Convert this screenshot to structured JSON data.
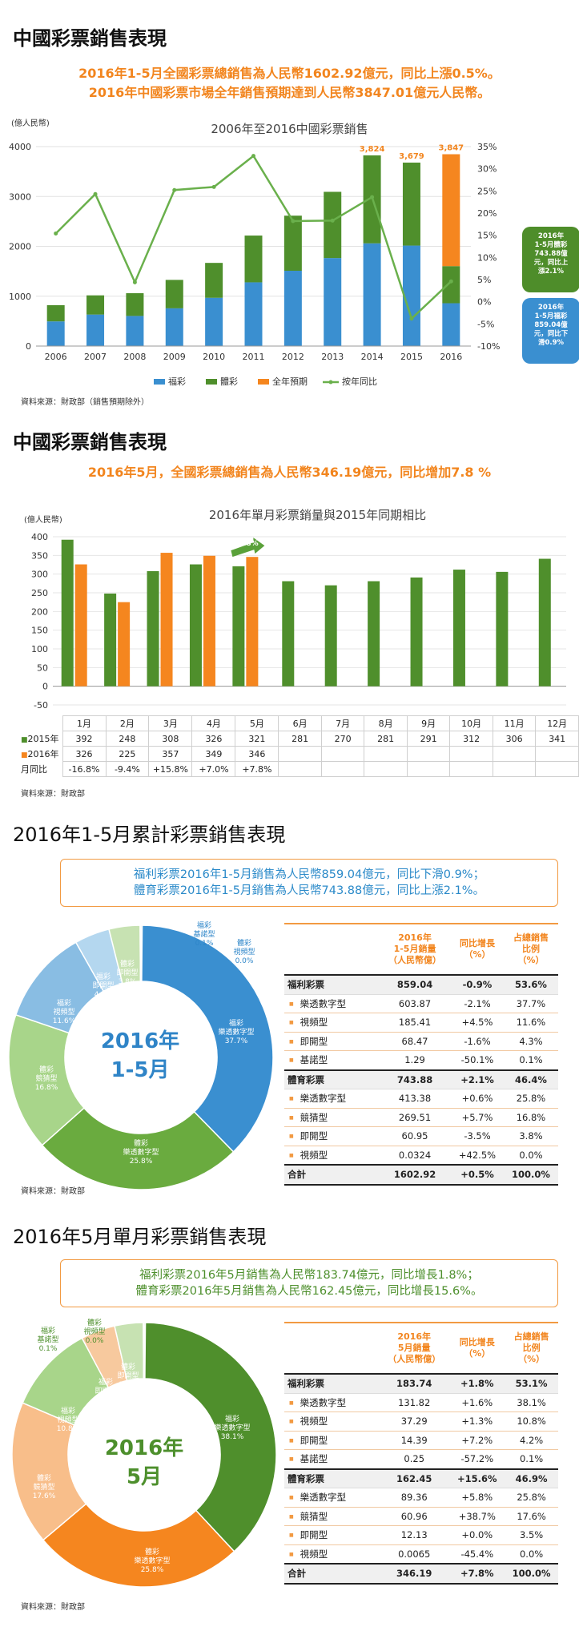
{
  "colors": {
    "fucai": "#3a8fd0",
    "ticai": "#4f8f2c",
    "yuqi": "#f5861f",
    "tongbi": "#6ab04c",
    "accent": "#f2851e"
  },
  "section1": {
    "title": "中國彩票銷售表現",
    "headline1": "2016年1-5月全國彩票總銷售為人民幣1602.92億元，同比上漲0.5%。",
    "headline2": "2016年中國彩票市場全年銷售預期達到人民幣3847.01億元人民幣。",
    "source": "資料來源：財政部（銷售預期除外）",
    "callout_ticai": "2016年\n1-5月體彩\n743.88億\n元，同比上\n漲2.1%",
    "callout_fucai": "2016年\n1-5月福彩\n859.04億\n元，同比下\n滑0.9%"
  },
  "chart_data": [
    {
      "type": "bar",
      "title": "2006年至2016中國彩票銷售",
      "ylabel": "(億人民幣)",
      "ylim": [
        0,
        4000
      ],
      "y2lim": [
        -10,
        35
      ],
      "categories": [
        "2006",
        "2007",
        "2008",
        "2009",
        "2010",
        "2011",
        "2012",
        "2013",
        "2014",
        "2015",
        "2016"
      ],
      "series": [
        {
          "name": "福彩",
          "values": [
            495,
            632,
            604,
            757,
            968,
            1278,
            1510,
            1765,
            2060,
            2015,
            859
          ]
        },
        {
          "name": "體彩",
          "values": [
            325,
            385,
            456,
            570,
            700,
            938,
            1105,
            1328,
            1764,
            1664,
            744
          ]
        },
        {
          "name": "全年預期",
          "values": [
            null,
            null,
            null,
            null,
            null,
            null,
            null,
            null,
            null,
            null,
            2244
          ]
        },
        {
          "name": "按年同比",
          "axis": "right",
          "values": [
            15.4,
            24.3,
            4.4,
            25.2,
            25.9,
            32.9,
            18.2,
            18.3,
            23.6,
            -3.8,
            4.6
          ]
        }
      ],
      "data_labels": [
        {
          "category": "2014",
          "text": "3,824"
        },
        {
          "category": "2015",
          "text": "3,679"
        },
        {
          "category": "2016",
          "text": "3,847"
        }
      ],
      "legend_placement": "bottom"
    },
    {
      "type": "bar",
      "title": "2016年單月彩票銷量與2015年同期相比",
      "ylabel": "(億人民幣)",
      "ylim": [
        -50,
        400
      ],
      "categories": [
        "1月",
        "2月",
        "3月",
        "4月",
        "5月",
        "6月",
        "7月",
        "8月",
        "9月",
        "10月",
        "11月",
        "12月"
      ],
      "series": [
        {
          "name": "2015年",
          "values": [
            392,
            248,
            308,
            326,
            321,
            281,
            270,
            281,
            291,
            312,
            306,
            341
          ],
          "labels": [
            "392",
            "248",
            "308",
            "326",
            "321",
            "281",
            "270",
            "281",
            "291",
            "312",
            "306",
            "341"
          ]
        },
        {
          "name": "2016年",
          "values": [
            326,
            225,
            357,
            349,
            346,
            null,
            null,
            null,
            null,
            null,
            null,
            null
          ],
          "labels": [
            "326",
            "225",
            "357",
            "349",
            "346",
            "",
            "",
            "",
            "",
            "",
            "",
            ""
          ]
        }
      ],
      "yoy_label": "月同比",
      "yoy": [
        "-16.8%",
        "-9.4%",
        "+15.8%",
        "+7.0%",
        "+7.8%",
        "",
        "",
        "",
        "",
        "",
        "",
        ""
      ],
      "annotation": "+7.8%"
    },
    {
      "type": "pie",
      "center_label": [
        "2016年",
        "1-5月"
      ],
      "slices": [
        {
          "label": "福彩",
          "sub": "樂透數字型",
          "pct": "37.7%",
          "value": 37.7
        },
        {
          "label": "體彩",
          "sub": "樂透數字型",
          "pct": "25.8%",
          "value": 25.8
        },
        {
          "label": "體彩",
          "sub": "競猜型",
          "pct": "16.8%",
          "value": 16.8
        },
        {
          "label": "福彩",
          "sub": "視頻型",
          "pct": "11.6%",
          "value": 11.6
        },
        {
          "label": "福彩",
          "sub": "即開型",
          "pct": "4.3%",
          "value": 4.3
        },
        {
          "label": "體彩",
          "sub": "即開型",
          "pct": "3.8%",
          "value": 3.8
        },
        {
          "label": "福彩",
          "sub": "基諾型",
          "pct": "0.1%",
          "value": 0.1
        },
        {
          "label": "體彩",
          "sub": "視頻型",
          "pct": "0.0%",
          "value": 0.0
        }
      ]
    },
    {
      "type": "pie",
      "center_label": [
        "2016年",
        "5月"
      ],
      "slices": [
        {
          "label": "福彩",
          "sub": "樂透數字型",
          "pct": "38.1%",
          "value": 38.1
        },
        {
          "label": "體彩",
          "sub": "樂透數字型",
          "pct": "25.8%",
          "value": 25.8
        },
        {
          "label": "體彩",
          "sub": "競猜型",
          "pct": "17.6%",
          "value": 17.6
        },
        {
          "label": "福彩",
          "sub": "視頻型",
          "pct": "10.8%",
          "value": 10.8
        },
        {
          "label": "福彩",
          "sub": "即開型",
          "pct": "4.2%",
          "value": 4.2
        },
        {
          "label": "體彩",
          "sub": "即開型",
          "pct": "3.5%",
          "value": 3.5
        },
        {
          "label": "福彩",
          "sub": "基諾型",
          "pct": "0.1%",
          "value": 0.1
        },
        {
          "label": "體彩",
          "sub": "視頻型",
          "pct": "0.0%",
          "value": 0.0
        }
      ]
    }
  ],
  "section2": {
    "title": "中國彩票銷售表現",
    "headline": "2016年5月，全國彩票總銷售為人民幣346.19億元，同比增加7.8 %",
    "source": "資料來源：財政部"
  },
  "section3": {
    "title": "2016年1-5月累計彩票銷售表現",
    "box1": "福利彩票2016年1-5月銷售為人民幣859.04億元，同比下滑0.9%；",
    "box2": "體育彩票2016年1-5月銷售為人民幣743.88億元，同比上漲2.1%。",
    "source": "資料來源：財政部",
    "table": {
      "h1": "2016年\n1-5月銷量\n（人民幣億）",
      "h2": "同比增長\n（%）",
      "h3": "占總銷售\n比例\n（%）",
      "rows": [
        {
          "kind": "cat",
          "name": "福利彩票",
          "v": "859.04",
          "g": "-0.9%",
          "p": "53.6%"
        },
        {
          "kind": "sub",
          "name": "樂透數字型",
          "v": "603.87",
          "g": "-2.1%",
          "p": "37.7%"
        },
        {
          "kind": "sub",
          "name": "視頻型",
          "v": "185.41",
          "g": "+4.5%",
          "p": "11.6%"
        },
        {
          "kind": "sub",
          "name": "即開型",
          "v": "68.47",
          "g": "-1.6%",
          "p": "4.3%"
        },
        {
          "kind": "sub",
          "name": "基諾型",
          "v": "1.29",
          "g": "-50.1%",
          "p": "0.1%"
        },
        {
          "kind": "cat",
          "name": "體育彩票",
          "v": "743.88",
          "g": "+2.1%",
          "p": "46.4%"
        },
        {
          "kind": "sub",
          "name": "樂透數字型",
          "v": "413.38",
          "g": "+0.6%",
          "p": "25.8%"
        },
        {
          "kind": "sub",
          "name": "競猜型",
          "v": "269.51",
          "g": "+5.7%",
          "p": "16.8%"
        },
        {
          "kind": "sub",
          "name": "即開型",
          "v": "60.95",
          "g": "-3.5%",
          "p": "3.8%"
        },
        {
          "kind": "sub",
          "name": "視頻型",
          "v": "0.0324",
          "g": "+42.5%",
          "p": "0.0%"
        },
        {
          "kind": "tot",
          "name": "合計",
          "v": "1602.92",
          "g": "+0.5%",
          "p": "100.0%"
        }
      ]
    }
  },
  "section4": {
    "title": "2016年5月單月彩票銷售表現",
    "box1": "福利彩票2016年5月銷售為人民幣183.74億元，同比增長1.8%；",
    "box2": "體育彩票2016年5月銷售為人民幣162.45億元，同比增長15.6%。",
    "source": "資料來源：財政部",
    "table": {
      "h1": "2016年\n5月銷量\n（人民幣億）",
      "h2": "同比增長\n（%）",
      "h3": "占總銷售\n比例\n（%）",
      "rows": [
        {
          "kind": "cat",
          "name": "福利彩票",
          "v": "183.74",
          "g": "+1.8%",
          "p": "53.1%"
        },
        {
          "kind": "sub",
          "name": "樂透數字型",
          "v": "131.82",
          "g": "+1.6%",
          "p": "38.1%"
        },
        {
          "kind": "sub",
          "name": "視頻型",
          "v": "37.29",
          "g": "+1.3%",
          "p": "10.8%"
        },
        {
          "kind": "sub",
          "name": "即開型",
          "v": "14.39",
          "g": "+7.2%",
          "p": "4.2%"
        },
        {
          "kind": "sub",
          "name": "基諾型",
          "v": "0.25",
          "g": "-57.2%",
          "p": "0.1%"
        },
        {
          "kind": "cat",
          "name": "體育彩票",
          "v": "162.45",
          "g": "+15.6%",
          "p": "46.9%"
        },
        {
          "kind": "sub",
          "name": "樂透數字型",
          "v": "89.36",
          "g": "+5.8%",
          "p": "25.8%"
        },
        {
          "kind": "sub",
          "name": "競猜型",
          "v": "60.96",
          "g": "+38.7%",
          "p": "17.6%"
        },
        {
          "kind": "sub",
          "name": "即開型",
          "v": "12.13",
          "g": "+0.0%",
          "p": "3.5%"
        },
        {
          "kind": "sub",
          "name": "視頻型",
          "v": "0.0065",
          "g": "-45.4%",
          "p": "0.0%"
        },
        {
          "kind": "tot",
          "name": "合計",
          "v": "346.19",
          "g": "+7.8%",
          "p": "100.0%"
        }
      ]
    }
  }
}
